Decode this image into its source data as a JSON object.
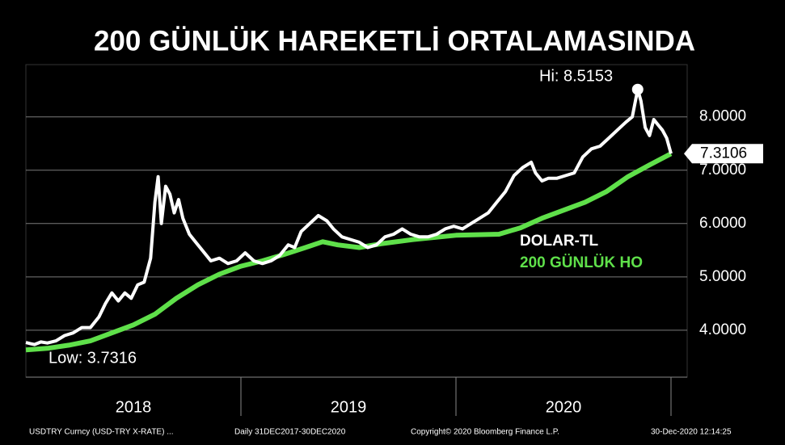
{
  "chart_data": {
    "type": "line",
    "title": "200 GÜNLÜK HAREKETLİ ORTALAMASINDA",
    "annotations": {
      "high": "Hi: 8.5153",
      "low": "Low: 3.7316",
      "last": "7.3106"
    },
    "footer": [
      "USDTRY Curncy (USD-TRY X-RATE) ...",
      "Daily 31DEC2017-30DEC2020",
      "Copyright© 2020 Bloomberg Finance L.P.",
      "30-Dec-2020 12:14:25"
    ],
    "xlim": [
      2018,
      2021
    ],
    "xticks": [
      {
        "value": 2018.5,
        "label": "2018"
      },
      {
        "value": 2019.5,
        "label": "2019"
      },
      {
        "value": 2020.5,
        "label": "2020"
      }
    ],
    "ylim": [
      3.12,
      8.98
    ],
    "yticks": [
      {
        "value": 4,
        "label": "4.0000"
      },
      {
        "value": 5,
        "label": "5.0000"
      },
      {
        "value": 6,
        "label": "6.0000"
      },
      {
        "value": 7,
        "label": "7.0000"
      },
      {
        "value": 8,
        "label": "8.0000"
      }
    ],
    "grid": true,
    "series": [
      {
        "name": "DOLAR-TL",
        "color": "#ffffff",
        "x": [
          2018.0,
          2018.02,
          2018.04,
          2018.07,
          2018.1,
          2018.14,
          2018.18,
          2018.22,
          2018.26,
          2018.3,
          2018.34,
          2018.37,
          2018.4,
          2018.43,
          2018.46,
          2018.49,
          2018.52,
          2018.55,
          2018.58,
          2018.6,
          2018.615,
          2018.63,
          2018.65,
          2018.67,
          2018.69,
          2018.71,
          2018.73,
          2018.76,
          2018.79,
          2018.82,
          2018.86,
          2018.9,
          2018.94,
          2018.98,
          2019.02,
          2019.06,
          2019.1,
          2019.14,
          2019.18,
          2019.22,
          2019.25,
          2019.28,
          2019.32,
          2019.36,
          2019.4,
          2019.43,
          2019.47,
          2019.51,
          2019.55,
          2019.59,
          2019.63,
          2019.67,
          2019.71,
          2019.75,
          2019.79,
          2019.83,
          2019.87,
          2019.91,
          2019.95,
          2019.99,
          2020.03,
          2020.07,
          2020.11,
          2020.15,
          2020.19,
          2020.23,
          2020.27,
          2020.31,
          2020.35,
          2020.37,
          2020.4,
          2020.43,
          2020.47,
          2020.51,
          2020.55,
          2020.59,
          2020.63,
          2020.67,
          2020.71,
          2020.75,
          2020.79,
          2020.82,
          2020.845,
          2020.86,
          2020.88,
          2020.9,
          2020.92,
          2020.94,
          2020.96,
          2020.98,
          2021.0
        ],
        "values": [
          3.77,
          3.75,
          3.7316,
          3.78,
          3.76,
          3.8,
          3.9,
          3.95,
          4.05,
          4.05,
          4.25,
          4.5,
          4.7,
          4.55,
          4.7,
          4.6,
          4.85,
          4.9,
          5.35,
          6.4,
          6.88,
          6.0,
          6.7,
          6.55,
          6.2,
          6.45,
          6.1,
          5.8,
          5.65,
          5.5,
          5.3,
          5.35,
          5.25,
          5.3,
          5.45,
          5.3,
          5.25,
          5.3,
          5.4,
          5.6,
          5.55,
          5.85,
          6.0,
          6.15,
          6.05,
          5.9,
          5.75,
          5.7,
          5.65,
          5.55,
          5.6,
          5.75,
          5.8,
          5.9,
          5.8,
          5.75,
          5.75,
          5.8,
          5.9,
          5.95,
          5.9,
          6.0,
          6.1,
          6.2,
          6.4,
          6.6,
          6.9,
          7.05,
          7.15,
          6.95,
          6.8,
          6.85,
          6.85,
          6.9,
          6.95,
          7.25,
          7.4,
          7.45,
          7.6,
          7.75,
          7.9,
          8.0,
          8.5153,
          8.3,
          7.8,
          7.65,
          7.95,
          7.85,
          7.75,
          7.6,
          7.3106
        ]
      },
      {
        "name": "200 GÜNLÜK HO",
        "color": "#5fe04a",
        "x": [
          2018.0,
          2018.1,
          2018.2,
          2018.3,
          2018.4,
          2018.5,
          2018.6,
          2018.7,
          2018.8,
          2018.9,
          2019.0,
          2019.1,
          2019.2,
          2019.3,
          2019.38,
          2019.45,
          2019.55,
          2019.65,
          2019.8,
          2020.0,
          2020.2,
          2020.3,
          2020.4,
          2020.5,
          2020.6,
          2020.7,
          2020.8,
          2020.9,
          2021.0
        ],
        "values": [
          3.63,
          3.66,
          3.72,
          3.8,
          3.95,
          4.1,
          4.3,
          4.6,
          4.85,
          5.05,
          5.2,
          5.3,
          5.42,
          5.55,
          5.66,
          5.6,
          5.55,
          5.62,
          5.7,
          5.78,
          5.8,
          5.92,
          6.1,
          6.25,
          6.4,
          6.6,
          6.88,
          7.1,
          7.31
        ]
      }
    ]
  }
}
